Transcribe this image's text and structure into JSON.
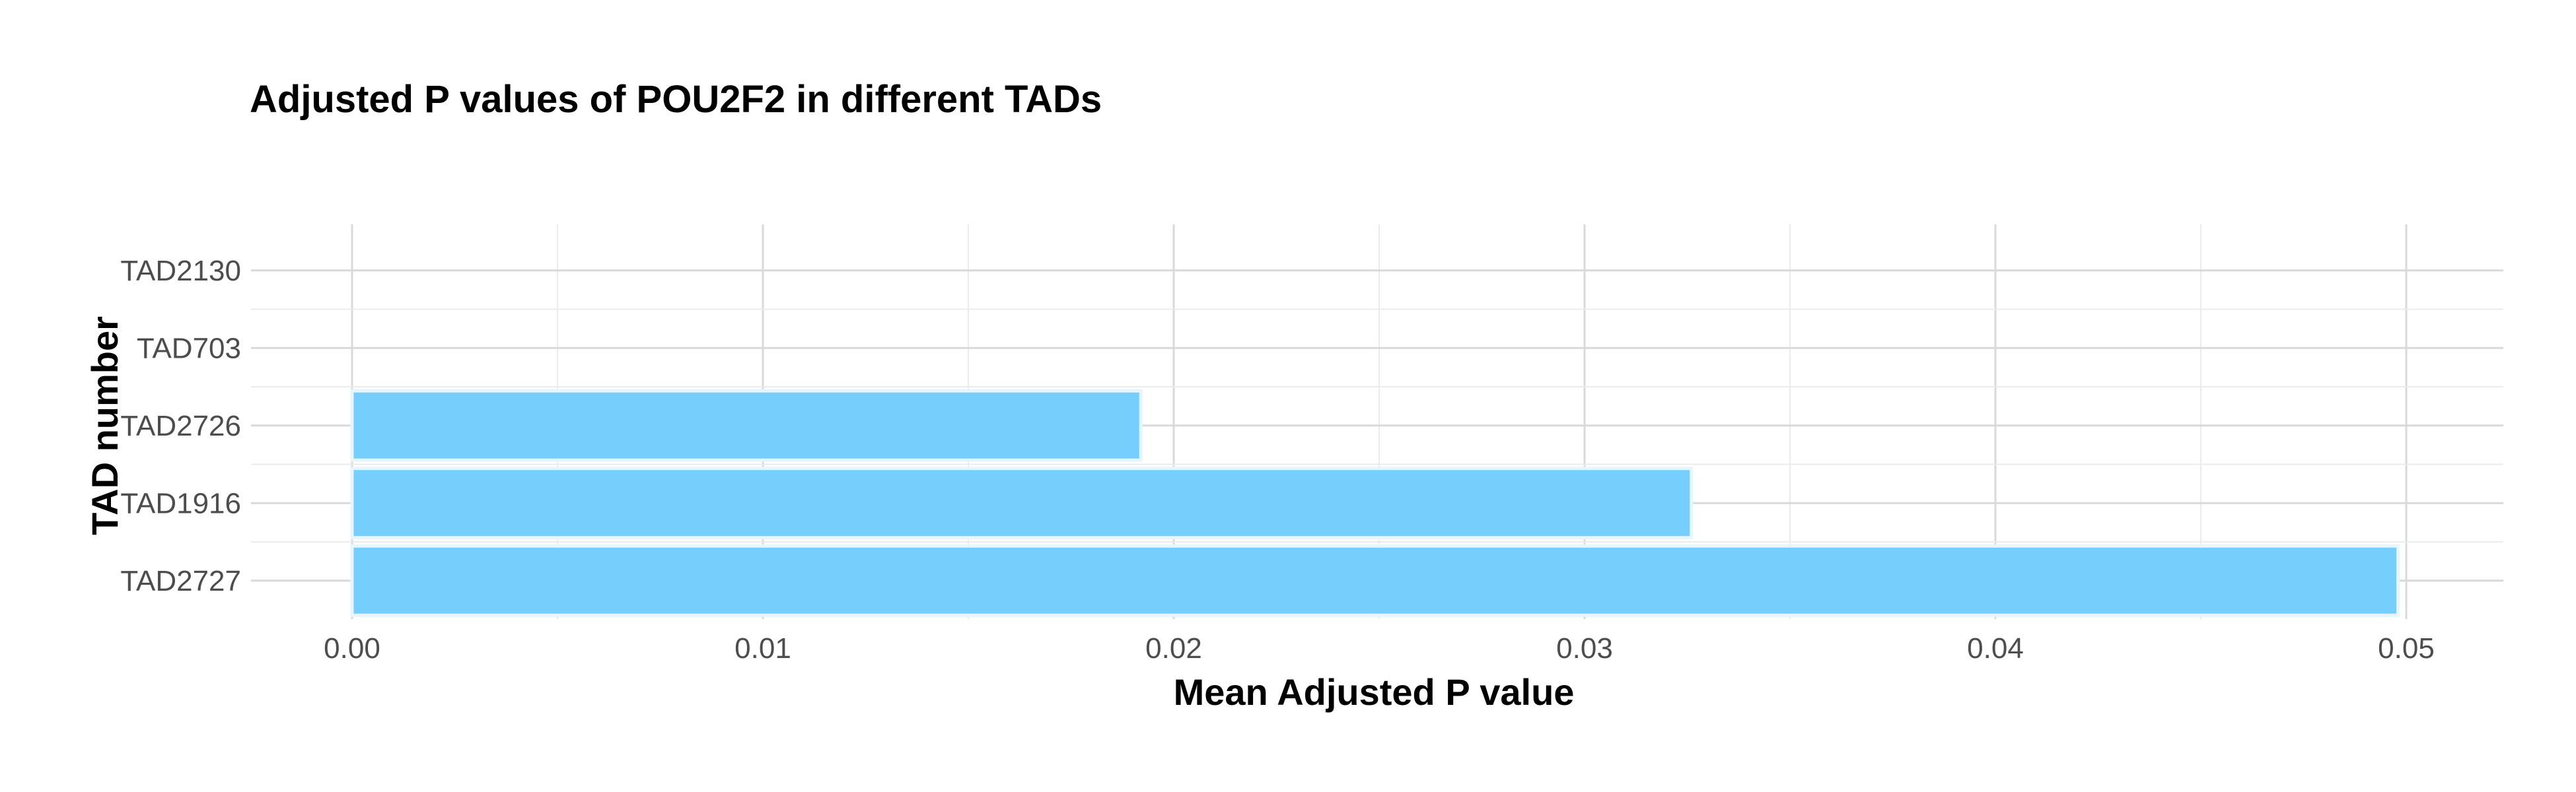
{
  "chart_data": {
    "type": "bar",
    "orientation": "horizontal",
    "title": "Adjusted P values of POU2F2 in different TADs",
    "xlabel": "Mean Adjusted P value",
    "ylabel": "TAD number",
    "categories": [
      "TAD2727",
      "TAD1916",
      "TAD2726",
      "TAD703",
      "TAD2130"
    ],
    "values": [
      0.0498,
      0.0326,
      0.0192,
      0.0,
      0.0
    ],
    "xlim": [
      0,
      0.05
    ],
    "xticks": [
      0.0,
      0.01,
      0.02,
      0.03,
      0.04,
      0.05
    ],
    "xtick_labels": [
      "0.00",
      "0.01",
      "0.02",
      "0.03",
      "0.04",
      "0.05"
    ],
    "grid": true,
    "legend": "none",
    "colors": {
      "bar_fill": "#75CEFB",
      "bar_stroke": "#E6F6FE",
      "grid_major": "#D9D9D9",
      "grid_minor": "#EBEBEB",
      "tick_text": "#4D4D4D",
      "title_text": "#000000"
    }
  }
}
